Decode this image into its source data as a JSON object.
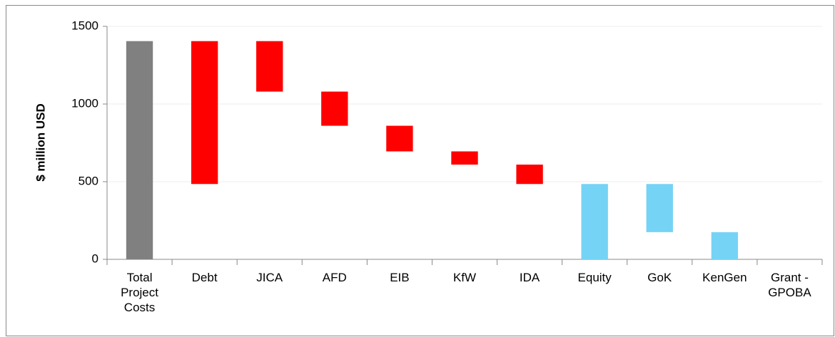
{
  "chart_data": {
    "type": "waterfall",
    "y_label": "$ million USD",
    "categories": [
      "Total Project Costs",
      "Debt",
      "JICA",
      "AFD",
      "EIB",
      "KfW",
      "IDA",
      "Equity",
      "GoK",
      "KenGen",
      "Grant - GPOBA"
    ],
    "values": [
      1405,
      920,
      325,
      220,
      165,
      85,
      125,
      485,
      310,
      175,
      0
    ],
    "measure": [
      "total",
      "subtotal",
      "relative",
      "relative",
      "relative",
      "relative",
      "relative",
      "subtotal",
      "relative",
      "relative",
      "relative"
    ],
    "colors": [
      "#808080",
      "#ff0000",
      "#ff0000",
      "#ff0000",
      "#ff0000",
      "#ff0000",
      "#ff0000",
      "#75d3f5",
      "#75d3f5",
      "#75d3f5",
      "#75d3f5"
    ],
    "ylim": [
      0,
      1500
    ],
    "yticks": [
      0,
      500,
      1000,
      1500
    ],
    "grid": true
  }
}
